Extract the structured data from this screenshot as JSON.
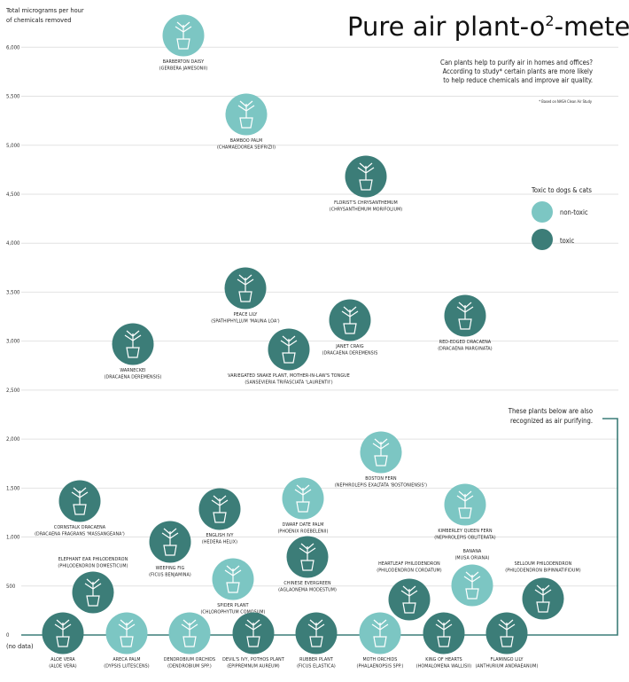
{
  "chart_data": {
    "type": "scatter",
    "title": "Pure air plant-o²-meter",
    "title_parts": {
      "before": "Pure air plant-o",
      "sup": "2",
      "after": "-meter"
    },
    "ylabel_lines": [
      "Total micrograms per hour",
      "of chemicals removed"
    ],
    "ylim": [
      0,
      6000
    ],
    "yticks": [
      0,
      500,
      1000,
      1500,
      2000,
      2500,
      3000,
      3500,
      4000,
      4500,
      5000,
      5500,
      6000
    ],
    "ytick_labels": [
      "0",
      "500",
      "1,000",
      "1,500",
      "2,000",
      "2,500",
      "3,000",
      "3,500",
      "4,000",
      "4,500",
      "5,000",
      "5,500",
      "6,000"
    ],
    "no_data_label": "(no data)",
    "grid": true,
    "subtitle_lines": [
      "Can plants help to purify air in homes and offices?",
      "According to study* certain plants are more likely",
      "to help reduce chemicals and improve air quality."
    ],
    "footnote": "* Based on NASA Clean Air Study",
    "legend": {
      "title": "Toxic to dogs & cats",
      "placement": "right",
      "items": [
        {
          "label": "non-toxic",
          "color": "#7cc6c3"
        },
        {
          "label": "toxic",
          "color": "#3c7d78"
        }
      ]
    },
    "bracket_note_lines": [
      "These plants below are also",
      "recognized as air purifying."
    ],
    "colors": {
      "non_toxic": "#7cc6c3",
      "toxic": "#3c7d78",
      "grid": "#e2e2e2",
      "bracket": "#3c7d78"
    },
    "points": [
      {
        "name": "BARBERTON DAISY",
        "latin": "(GERBERA JAMESONII)",
        "value": 6120,
        "toxic": false
      },
      {
        "name": "BAMBOO PALM",
        "latin": "(CHAMAEDOREA SEIFRIZII)",
        "value": 5320,
        "toxic": false
      },
      {
        "name": "FLORIST'S CHRYSANTHEMUM",
        "latin": "(CHRYSANTHEMUM MORIFOLIUM)",
        "value": 4680,
        "toxic": true
      },
      {
        "name": "PEACE LILY",
        "latin": "(SPATHIPHYLLUM 'MAUNA LOA')",
        "value": 3540,
        "toxic": true
      },
      {
        "name": "JANET CRAIG",
        "latin": "(DRACAENA DEREMENSIS",
        "value": 3220,
        "toxic": true
      },
      {
        "name": "RED-EDGED DRACAENA",
        "latin": "(DRACAENA MARGINATA)",
        "value": 3260,
        "toxic": true
      },
      {
        "name": "WARNECKEI",
        "latin": "(DRACAENA DEREMENSIS)",
        "value": 2970,
        "toxic": true
      },
      {
        "name": "VARIEGATED SNAKE PLANT, MOTHER-IN-LAW'S TONGUE",
        "latin": "(SANSEVIERIA TRIFASCIATA 'LAURENTII')",
        "value": 2920,
        "toxic": true
      },
      {
        "name": "BOSTON FERN",
        "latin": "(NEPHROLEPIS EXALTATA 'BOSTONIENSIS')",
        "value": 1870,
        "toxic": false
      },
      {
        "name": "CORNSTALK DRACAENA",
        "latin": "(DRACAENA FRAGRANS 'MASSANGEANA')",
        "value": 1370,
        "toxic": true
      },
      {
        "name": "ENGLISH IVY",
        "latin": "(HEDERA HELIX)",
        "value": 1290,
        "toxic": true
      },
      {
        "name": "DWARF DATE PALM",
        "latin": "(PHOENIX ROEBELENII)",
        "value": 1390,
        "toxic": false
      },
      {
        "name": "KIMBERLEY QUEEN FERN",
        "latin": "(NEPHROLEPIS OBLITERATA)",
        "value": 1330,
        "toxic": false
      },
      {
        "name": "WEEPING FIG",
        "latin": "(FICUS BENJAMINA)",
        "value": 950,
        "toxic": true
      },
      {
        "name": "CHINESE EVERGREEN",
        "latin": "(AGLAONEMA MODESTUM)",
        "value": 800,
        "toxic": true
      },
      {
        "name": "ELEPHANT EAR PHILODENDRON",
        "latin": "(PHILODENDRON DOMESTICUM)",
        "value": 435,
        "toxic": true
      },
      {
        "name": "SPIDER PLANT",
        "latin": "(CHLOROPHYTUM COMOSUM)",
        "value": 570,
        "toxic": false
      },
      {
        "name": "BANANA",
        "latin": "(MUSA ORIANA)",
        "value": 510,
        "toxic": false
      },
      {
        "name": "HEARTLEAF PHILODENDRON",
        "latin": "(PHILODENDRON CORDATUM)",
        "value": 360,
        "toxic": true
      },
      {
        "name": "SELLOUM PHILODENDRON",
        "latin": "(PHILODENDRON BIPINNATIFIDUM)",
        "value": 370,
        "toxic": true
      },
      {
        "name": "ALOE VERA",
        "latin": "(ALOE VERA)",
        "value": null,
        "toxic": true
      },
      {
        "name": "ARECA PALM",
        "latin": "(DYPSIS LUTESCENS)",
        "value": null,
        "toxic": false
      },
      {
        "name": "DENDROBIUM ORCHIDS",
        "latin": "(DENDROBIUM SPP.)",
        "value": null,
        "toxic": false
      },
      {
        "name": "DEVIL'S IVY, POTHOS PLANT",
        "latin": "(EPIPREMNUM AUREUM)",
        "value": null,
        "toxic": true
      },
      {
        "name": "RUBBER PLANT",
        "latin": "(FICUS ELASTICA)",
        "value": null,
        "toxic": true
      },
      {
        "name": "MOTH ORCHIDS",
        "latin": "(PHALAENOPSIS SPP.)",
        "value": null,
        "toxic": false
      },
      {
        "name": "KING OF HEARTS",
        "latin": "(HOMALOMENA WALLISII)",
        "value": null,
        "toxic": true
      },
      {
        "name": "FLAMINGO LILY",
        "latin": "(ANTHURIUM ANDRAEANUM)",
        "value": null,
        "toxic": true
      }
    ]
  }
}
